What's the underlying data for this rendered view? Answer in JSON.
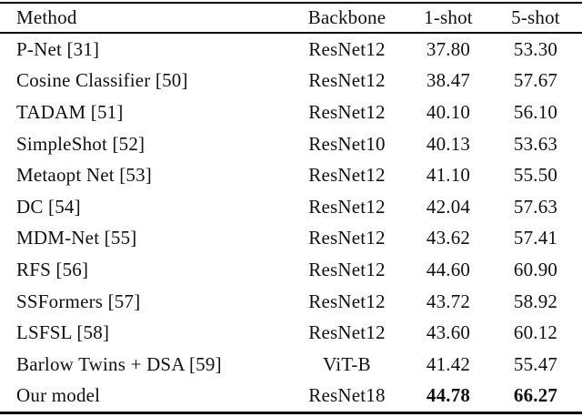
{
  "page": {
    "background": "#ffffff",
    "text_color": "#101010",
    "rule_color": "#000000"
  },
  "table": {
    "columns": [
      {
        "label": "Method",
        "align": "left"
      },
      {
        "label": "Backbone",
        "align": "center"
      },
      {
        "label": "1-shot",
        "align": "center"
      },
      {
        "label": "5-shot",
        "align": "center"
      }
    ],
    "rows": [
      {
        "method": "P-Net [31]",
        "backbone": "ResNet12",
        "one_shot": "37.80",
        "five_shot": "53.30",
        "bold_values": false
      },
      {
        "method": "Cosine Classifier [50]",
        "backbone": "ResNet12",
        "one_shot": "38.47",
        "five_shot": "57.67",
        "bold_values": false
      },
      {
        "method": "TADAM [51]",
        "backbone": "ResNet12",
        "one_shot": "40.10",
        "five_shot": "56.10",
        "bold_values": false
      },
      {
        "method": "SimpleShot [52]",
        "backbone": "ResNet10",
        "one_shot": "40.13",
        "five_shot": "53.63",
        "bold_values": false
      },
      {
        "method": "Metaopt Net [53]",
        "backbone": "ResNet12",
        "one_shot": "41.10",
        "five_shot": "55.50",
        "bold_values": false
      },
      {
        "method": "DC [54]",
        "backbone": "ResNet12",
        "one_shot": "42.04",
        "five_shot": "57.63",
        "bold_values": false
      },
      {
        "method": "MDM-Net [55]",
        "backbone": "ResNet12",
        "one_shot": "43.62",
        "five_shot": "57.41",
        "bold_values": false
      },
      {
        "method": "RFS [56]",
        "backbone": "ResNet12",
        "one_shot": "44.60",
        "five_shot": "60.90",
        "bold_values": false
      },
      {
        "method": "SSFormers [57]",
        "backbone": "ResNet12",
        "one_shot": "43.72",
        "five_shot": "58.92",
        "bold_values": false
      },
      {
        "method": "LSFSL [58]",
        "backbone": "ResNet12",
        "one_shot": "43.60",
        "five_shot": "60.12",
        "bold_values": false
      },
      {
        "method": "Barlow Twins + DSA [59]",
        "backbone": "ViT-B",
        "one_shot": "41.42",
        "five_shot": "55.47",
        "bold_values": false
      },
      {
        "method": "Our model",
        "backbone": "ResNet18",
        "one_shot": "44.78",
        "five_shot": "66.27",
        "bold_values": true
      }
    ]
  }
}
